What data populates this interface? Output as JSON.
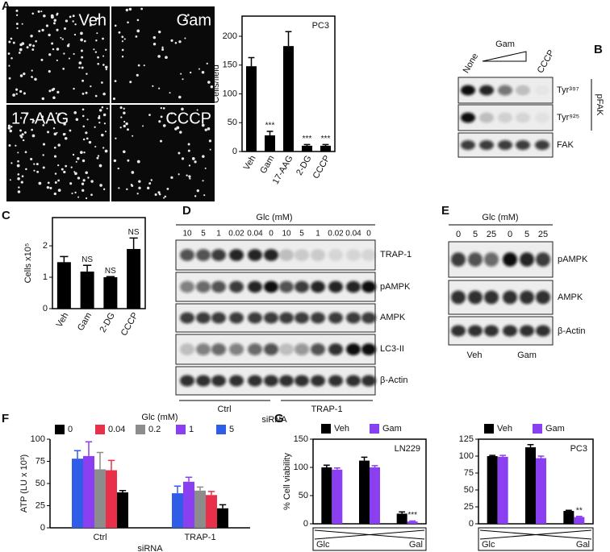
{
  "panel_labels": [
    "A",
    "B",
    "C",
    "D",
    "E",
    "F",
    "G"
  ],
  "micrographs": [
    "Veh",
    "Gam",
    "17-AAG",
    "CCCP"
  ],
  "blot_b": {
    "lanes": [
      "None",
      "Gam",
      "CCCP"
    ],
    "rows": [
      "Tyr³⁹⁷",
      "Tyr⁹²⁵",
      "FAK"
    ],
    "group": "pFAK"
  },
  "blot_d": {
    "header": "Glc (mM)",
    "lanes": [
      "10",
      "5",
      "1",
      "0.02",
      "0.04",
      "0",
      "10",
      "5",
      "1",
      "0.02",
      "0.04",
      "0"
    ],
    "rows": [
      "TRAP-1",
      "pAMPK",
      "AMPK",
      "LC3-II",
      "β-Actin"
    ],
    "groups": [
      "Ctrl",
      "TRAP-1"
    ],
    "footer": "siRNA"
  },
  "blot_e": {
    "header": "Glc (mM)",
    "lanes": [
      "0",
      "5",
      "25",
      "0",
      "5",
      "25"
    ],
    "rows": [
      "pAMPK",
      "AMPK",
      "β-Actin"
    ],
    "groups": [
      "Veh",
      "Gam"
    ]
  },
  "chart_data": [
    {
      "type": "bar",
      "title": "PC3",
      "ylabel": "Cells/field",
      "categories": [
        "Veh",
        "Gam",
        "17-AAG",
        "2-DG",
        "CCCP"
      ],
      "values": [
        148,
        28,
        183,
        10,
        10
      ],
      "errors": [
        15,
        7,
        25,
        2,
        2
      ],
      "annotations": [
        null,
        "***",
        null,
        "***",
        "***"
      ],
      "color": "#000000",
      "ylim": [
        0,
        235
      ],
      "yticks": [
        0,
        50,
        100,
        150,
        200
      ],
      "frame": true
    },
    {
      "type": "bar",
      "ylabel": "Cells x10⁵",
      "categories": [
        "Veh",
        "Gam",
        "2-DG",
        "CCCP"
      ],
      "values": [
        1.48,
        1.18,
        1.0,
        1.9
      ],
      "errors": [
        0.18,
        0.2,
        0.02,
        0.35
      ],
      "annotations": [
        null,
        "NS",
        "NS",
        "NS"
      ],
      "color": "#000000",
      "ylim": [
        0,
        2.9
      ],
      "yticks": [
        0,
        1,
        2
      ],
      "frame": true
    },
    {
      "type": "bar",
      "ylabel": "ATP (LU x 10³)",
      "xlabel": "siRNA",
      "legend_title": "Glc (mM)",
      "categories": [
        "Ctrl",
        "TRAP-1"
      ],
      "series": [
        {
          "name": "0",
          "color": "#000000",
          "values": [
            40,
            22
          ],
          "errors": [
            2,
            4
          ]
        },
        {
          "name": "0.04",
          "color": "#e8304a",
          "values": [
            65,
            37
          ],
          "errors": [
            11,
            4
          ]
        },
        {
          "name": "0.2",
          "color": "#8c8c8c",
          "values": [
            66,
            42
          ],
          "errors": [
            19,
            4
          ]
        },
        {
          "name": "1",
          "color": "#8a3ff0",
          "values": [
            81,
            52
          ],
          "errors": [
            16,
            5
          ]
        },
        {
          "name": "5",
          "color": "#2f5de8",
          "values": [
            78,
            39
          ],
          "errors": [
            9,
            8
          ]
        }
      ],
      "ylim": [
        0,
        100
      ],
      "yticks": [
        0,
        25,
        50,
        75,
        100
      ],
      "frame": false
    },
    {
      "type": "bar",
      "title": "LN229",
      "ylabel": "% Cell viability",
      "categories": [
        null,
        null,
        null
      ],
      "gradient_labels": [
        "Glc",
        "Gal"
      ],
      "series": [
        {
          "name": "Veh",
          "color": "#000000",
          "values": [
            100,
            112,
            18
          ],
          "errors": [
            4,
            6,
            3
          ],
          "annotations": [
            null,
            null,
            null
          ]
        },
        {
          "name": "Gam",
          "color": "#8a3ff0",
          "values": [
            96,
            100,
            4
          ],
          "errors": [
            3,
            3,
            1
          ],
          "annotations": [
            null,
            null,
            "***"
          ]
        }
      ],
      "ylim": [
        0,
        150
      ],
      "yticks": [
        0,
        50,
        100,
        150
      ],
      "frame": true
    },
    {
      "type": "bar",
      "title": "PC3",
      "categories": [
        null,
        null,
        null
      ],
      "gradient_labels": [
        "Glc",
        "Gal"
      ],
      "series": [
        {
          "name": "Veh",
          "color": "#000000",
          "values": [
            100,
            113,
            19
          ],
          "errors": [
            1,
            4,
            1
          ],
          "annotations": [
            null,
            null,
            null
          ]
        },
        {
          "name": "Gam",
          "color": "#8a3ff0",
          "values": [
            99,
            97,
            10
          ],
          "errors": [
            2,
            3,
            1
          ],
          "annotations": [
            null,
            null,
            "**"
          ]
        }
      ],
      "ylim": [
        0,
        125
      ],
      "yticks": [
        0,
        25,
        50,
        75,
        100,
        125
      ],
      "frame": true
    }
  ]
}
